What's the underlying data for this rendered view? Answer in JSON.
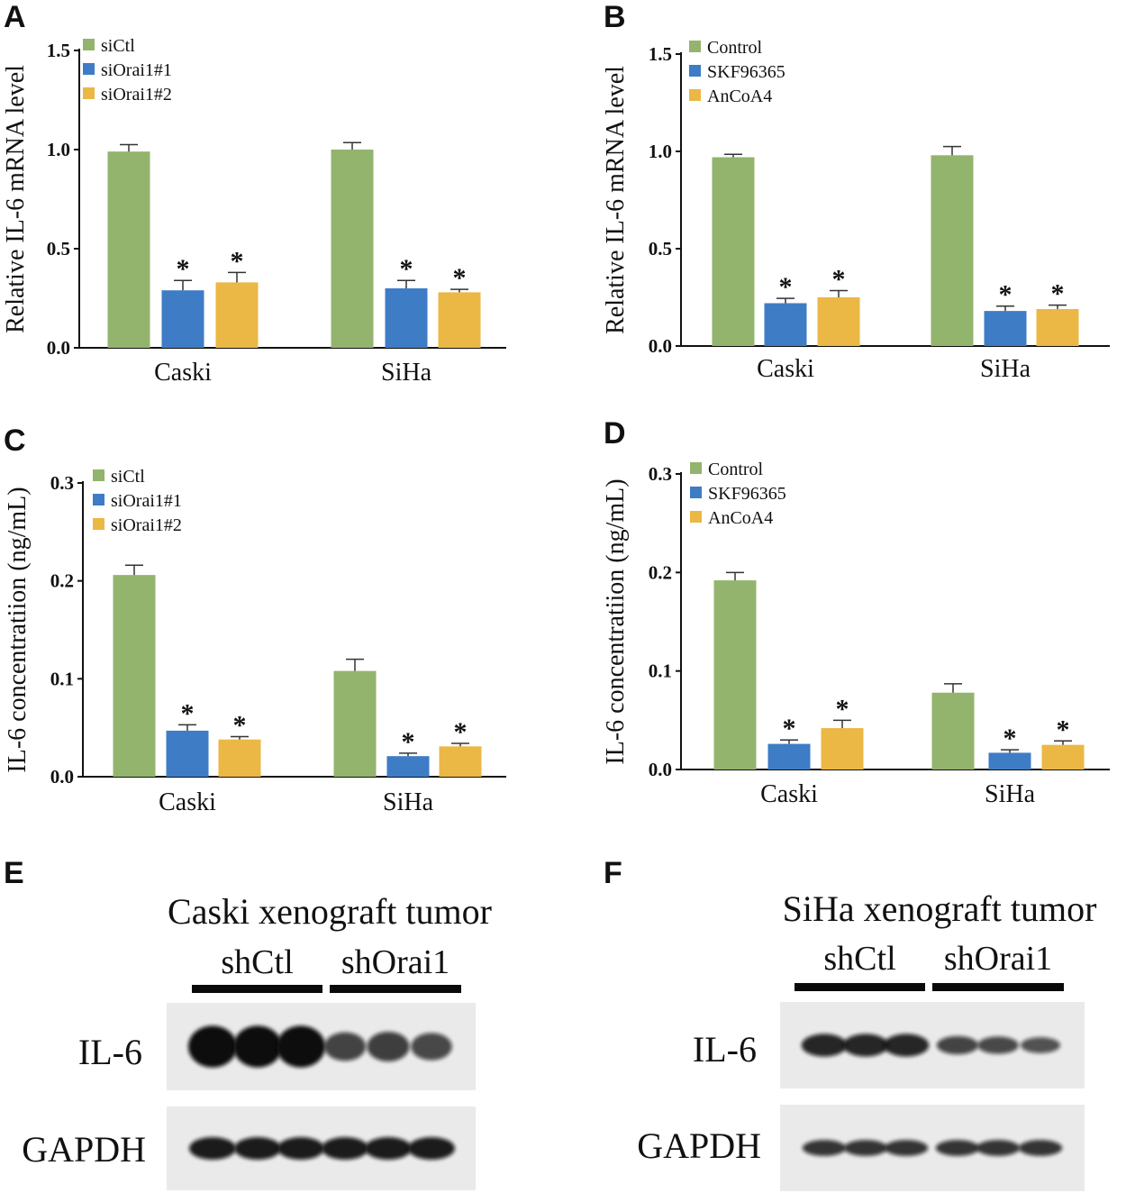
{
  "colors": {
    "green": "#93b46d",
    "blue": "#3e7cc6",
    "yellow": "#ebb745",
    "band": "#0b0b0b",
    "blot_bg": "#eaeaea"
  },
  "charts": [
    {
      "panel": "A",
      "chart_data": {
        "type": "bar",
        "categories": [
          "Caski",
          "SiHa"
        ],
        "series": [
          {
            "name": "siCtl",
            "color": "green",
            "values": [
              0.99,
              1.0
            ],
            "errors": [
              0.035,
              0.035
            ],
            "sig": [
              "",
              ""
            ]
          },
          {
            "name": "siOrai1#1",
            "color": "blue",
            "values": [
              0.29,
              0.3
            ],
            "errors": [
              0.05,
              0.04
            ],
            "sig": [
              "*",
              "*"
            ]
          },
          {
            "name": "siOrai1#2",
            "color": "yellow",
            "values": [
              0.33,
              0.28
            ],
            "errors": [
              0.05,
              0.015
            ],
            "sig": [
              "*",
              "*"
            ]
          }
        ],
        "ylabel": "Relative IL-6 mRNA level",
        "ylim": [
          0,
          1.5
        ],
        "yticks": [
          "0.0",
          "0.5",
          "1.0",
          "1.5"
        ],
        "legend": "top-left"
      }
    },
    {
      "panel": "B",
      "chart_data": {
        "type": "bar",
        "categories": [
          "Caski",
          "SiHa"
        ],
        "series": [
          {
            "name": "Control",
            "color": "green",
            "values": [
              0.97,
              0.98
            ],
            "errors": [
              0.015,
              0.045
            ],
            "sig": [
              "",
              ""
            ]
          },
          {
            "name": "SKF96365",
            "color": "blue",
            "values": [
              0.22,
              0.18
            ],
            "errors": [
              0.025,
              0.025
            ],
            "sig": [
              "*",
              "*"
            ]
          },
          {
            "name": "AnCoA4",
            "color": "yellow",
            "values": [
              0.25,
              0.19
            ],
            "errors": [
              0.035,
              0.02
            ],
            "sig": [
              "*",
              "*"
            ]
          }
        ],
        "ylabel": "Relative IL-6 mRNA level",
        "ylim": [
          0,
          1.5
        ],
        "yticks": [
          "0.0",
          "0.5",
          "1.0",
          "1.5"
        ],
        "legend": "top-left"
      }
    },
    {
      "panel": "C",
      "chart_data": {
        "type": "bar",
        "categories": [
          "Caski",
          "SiHa"
        ],
        "series": [
          {
            "name": "siCtl",
            "color": "green",
            "values": [
              0.206,
              0.108
            ],
            "errors": [
              0.01,
              0.012
            ],
            "sig": [
              "",
              ""
            ]
          },
          {
            "name": "siOrai1#1",
            "color": "blue",
            "values": [
              0.047,
              0.021
            ],
            "errors": [
              0.006,
              0.003
            ],
            "sig": [
              "*",
              "*"
            ]
          },
          {
            "name": "siOrai1#2",
            "color": "yellow",
            "values": [
              0.038,
              0.031
            ],
            "errors": [
              0.003,
              0.003
            ],
            "sig": [
              "*",
              "*"
            ]
          }
        ],
        "ylabel": "IL-6 concentratiion (ng/mL)",
        "ylim": [
          0,
          0.3
        ],
        "yticks": [
          "0.0",
          "0.1",
          "0.2",
          "0.3"
        ],
        "legend": "top-left"
      }
    },
    {
      "panel": "D",
      "chart_data": {
        "type": "bar",
        "categories": [
          "Caski",
          "SiHa"
        ],
        "series": [
          {
            "name": "Control",
            "color": "green",
            "values": [
              0.192,
              0.078
            ],
            "errors": [
              0.008,
              0.009
            ],
            "sig": [
              "",
              ""
            ]
          },
          {
            "name": "SKF96365",
            "color": "blue",
            "values": [
              0.026,
              0.017
            ],
            "errors": [
              0.004,
              0.003
            ],
            "sig": [
              "*",
              "*"
            ]
          },
          {
            "name": "AnCoA4",
            "color": "yellow",
            "values": [
              0.042,
              0.025
            ],
            "errors": [
              0.008,
              0.004
            ],
            "sig": [
              "*",
              "*"
            ]
          }
        ],
        "ylabel": "IL-6 concentratiion (ng/mL)",
        "ylim": [
          0,
          0.3
        ],
        "yticks": [
          "0.0",
          "0.1",
          "0.2",
          "0.3"
        ],
        "legend": "top-left"
      }
    }
  ],
  "blots": [
    {
      "panel": "E",
      "title": "Caski xenograft tumor",
      "groups": [
        "shCtl",
        "shOrai1"
      ],
      "rows": [
        {
          "label": "IL-6",
          "intensity": [
            1.0,
            1.0,
            1.0,
            0.45,
            0.5,
            0.4
          ]
        },
        {
          "label": "GAPDH",
          "intensity": [
            0.85,
            0.85,
            0.85,
            0.85,
            0.85,
            0.85
          ]
        }
      ]
    },
    {
      "panel": "F",
      "title": "SiHa xenograft tumor",
      "groups": [
        "shCtl",
        "shOrai1"
      ],
      "rows": [
        {
          "label": "IL-6",
          "intensity": [
            0.75,
            0.75,
            0.75,
            0.45,
            0.4,
            0.3
          ]
        },
        {
          "label": "GAPDH",
          "intensity": [
            0.6,
            0.6,
            0.6,
            0.6,
            0.6,
            0.6
          ]
        }
      ]
    }
  ]
}
